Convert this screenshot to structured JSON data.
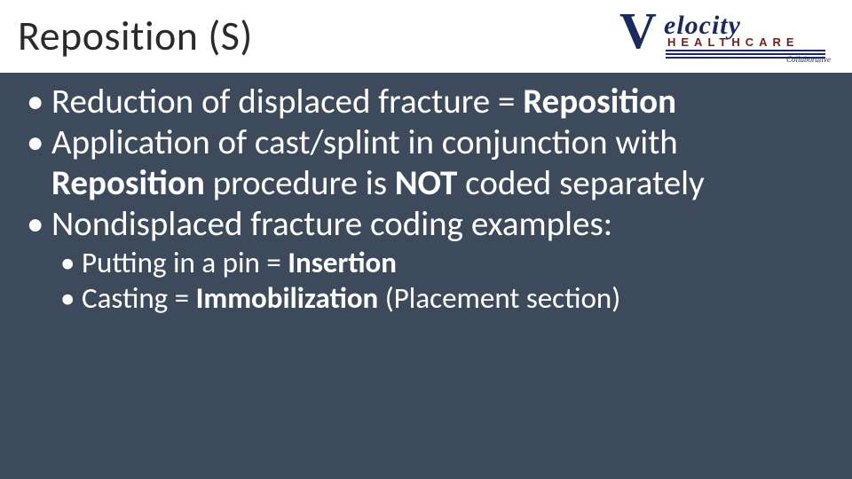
{
  "slide": {
    "title": "Reposition (S)",
    "background_color": "#3d4a5c",
    "header_bg": "#ffffff",
    "text_color": "#ffffff",
    "title_color": "#2a2a2a",
    "title_fontsize": 46,
    "body_fontsize_l1": 39,
    "body_fontsize_l2": 33
  },
  "logo": {
    "v": "V",
    "elocity": "elocity",
    "healthcare": "HEALTHCARE",
    "collaborative": "Collaborative",
    "primary_color": "#1a2a5c",
    "accent_color": "#7b1a1a"
  },
  "bullets": {
    "b1_a": "Reduction of displaced fracture = ",
    "b1_b": "Reposition",
    "b2_a": "Application of cast/splint in conjunction with ",
    "b2_b": "Reposition",
    "b2_c": " procedure is ",
    "b2_d": "NOT",
    "b2_e": " coded separately",
    "b3": "Nondisplaced fracture coding examples:",
    "b3_1_a": "Putting in a pin = ",
    "b3_1_b": "Insertion",
    "b3_2_a": "Casting = ",
    "b3_2_b": "Immobilization",
    "b3_2_c": " (Placement section)"
  }
}
